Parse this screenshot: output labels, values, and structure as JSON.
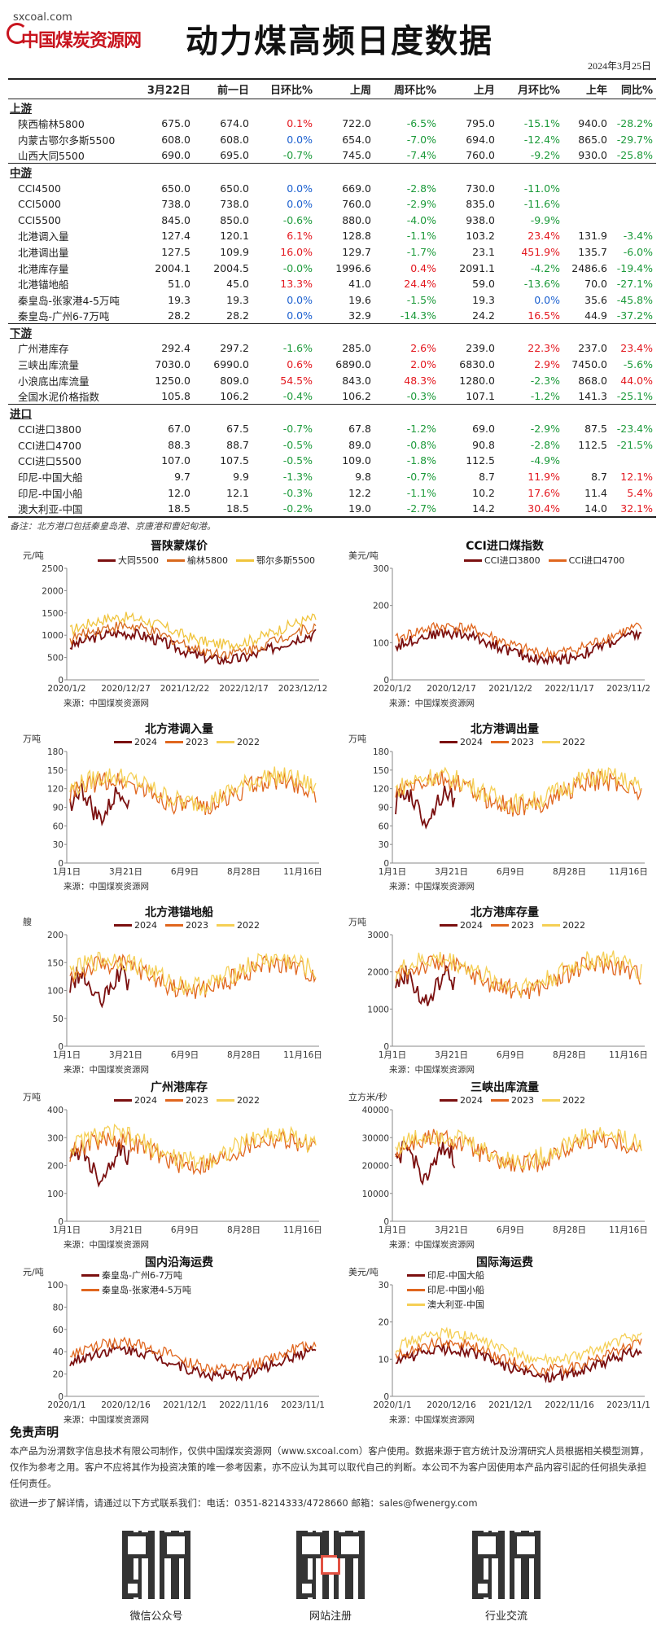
{
  "header": {
    "site": "sxcoal.com",
    "logo_name": "中国煤炭资源网",
    "title": "动力煤高频日度数据",
    "date": "2024年3月25日"
  },
  "table": {
    "columns": [
      "",
      "3月22日",
      "前一日",
      "日环比%",
      "上周",
      "周环比%",
      "上月",
      "月环比%",
      "上年",
      "同比%"
    ],
    "sections": [
      {
        "name": "上游",
        "rows": [
          [
            "陕西榆林5800",
            "675.0",
            "674.0",
            "0.1%",
            "722.0",
            "-6.5%",
            "795.0",
            "-15.1%",
            "940.0",
            "-28.2%"
          ],
          [
            "内蒙古鄂尔多斯5500",
            "608.0",
            "608.0",
            "0.0%",
            "654.0",
            "-7.0%",
            "694.0",
            "-12.4%",
            "865.0",
            "-29.7%"
          ],
          [
            "山西大同5500",
            "690.0",
            "695.0",
            "-0.7%",
            "745.0",
            "-7.4%",
            "760.0",
            "-9.2%",
            "930.0",
            "-25.8%"
          ]
        ]
      },
      {
        "name": "中游",
        "rows": [
          [
            "CCI4500",
            "650.0",
            "650.0",
            "0.0%",
            "669.0",
            "-2.8%",
            "730.0",
            "-11.0%",
            "",
            ""
          ],
          [
            "CCI5000",
            "738.0",
            "738.0",
            "0.0%",
            "760.0",
            "-2.9%",
            "835.0",
            "-11.6%",
            "",
            ""
          ],
          [
            "CCI5500",
            "845.0",
            "850.0",
            "-0.6%",
            "880.0",
            "-4.0%",
            "938.0",
            "-9.9%",
            "",
            ""
          ],
          [
            "北港调入量",
            "127.4",
            "120.1",
            "6.1%",
            "128.8",
            "-1.1%",
            "103.2",
            "23.4%",
            "131.9",
            "-3.4%"
          ],
          [
            "北港调出量",
            "127.5",
            "109.9",
            "16.0%",
            "129.7",
            "-1.7%",
            "23.1",
            "451.9%",
            "135.7",
            "-6.0%"
          ],
          [
            "北港库存量",
            "2004.1",
            "2004.5",
            "-0.0%",
            "1996.6",
            "0.4%",
            "2091.1",
            "-4.2%",
            "2486.6",
            "-19.4%"
          ],
          [
            "北港锚地船",
            "51.0",
            "45.0",
            "13.3%",
            "41.0",
            "24.4%",
            "59.0",
            "-13.6%",
            "70.0",
            "-27.1%"
          ],
          [
            "秦皇岛-张家港4-5万吨",
            "19.3",
            "19.3",
            "0.0%",
            "19.6",
            "-1.5%",
            "19.3",
            "0.0%",
            "35.6",
            "-45.8%"
          ],
          [
            "秦皇岛-广州6-7万吨",
            "28.2",
            "28.2",
            "0.0%",
            "32.9",
            "-14.3%",
            "24.2",
            "16.5%",
            "44.9",
            "-37.2%"
          ]
        ]
      },
      {
        "name": "下游",
        "rows": [
          [
            "广州港库存",
            "292.4",
            "297.2",
            "-1.6%",
            "285.0",
            "2.6%",
            "239.0",
            "22.3%",
            "237.0",
            "23.4%"
          ],
          [
            "三峡出库流量",
            "7030.0",
            "6990.0",
            "0.6%",
            "6890.0",
            "2.0%",
            "6830.0",
            "2.9%",
            "7450.0",
            "-5.6%"
          ],
          [
            "小浪底出库流量",
            "1250.0",
            "809.0",
            "54.5%",
            "843.0",
            "48.3%",
            "1280.0",
            "-2.3%",
            "868.0",
            "44.0%"
          ],
          [
            "全国水泥价格指数",
            "105.8",
            "106.2",
            "-0.4%",
            "106.2",
            "-0.3%",
            "107.1",
            "-1.2%",
            "141.3",
            "-25.1%"
          ]
        ]
      },
      {
        "name": "进口",
        "rows": [
          [
            "CCI进口3800",
            "67.0",
            "67.5",
            "-0.7%",
            "67.8",
            "-1.2%",
            "69.0",
            "-2.9%",
            "87.5",
            "-23.4%"
          ],
          [
            "CCI进口4700",
            "88.3",
            "88.7",
            "-0.5%",
            "89.0",
            "-0.8%",
            "90.8",
            "-2.8%",
            "112.5",
            "-21.5%"
          ],
          [
            "CCI进口5500",
            "107.0",
            "107.5",
            "-0.5%",
            "109.0",
            "-1.8%",
            "112.5",
            "-4.9%",
            "",
            ""
          ],
          [
            "印尼-中国大船",
            "9.7",
            "9.9",
            "-1.3%",
            "9.8",
            "-0.7%",
            "8.7",
            "11.9%",
            "8.7",
            "12.1%"
          ],
          [
            "印尼-中国小船",
            "12.0",
            "12.1",
            "-0.3%",
            "12.2",
            "-1.1%",
            "10.2",
            "17.6%",
            "11.4",
            "5.4%"
          ],
          [
            "澳大利亚-中国",
            "18.5",
            "18.5",
            "-0.2%",
            "19.0",
            "-2.7%",
            "14.2",
            "30.4%",
            "14.0",
            "32.1%"
          ]
        ]
      }
    ],
    "note": "备注：北方港口包括秦皇岛港、京唐港和曹妃甸港。"
  },
  "charts": [
    {
      "id": "c1",
      "title": "晋陕蒙煤价",
      "unit": "元/吨",
      "source": "来源：中国煤炭资源网",
      "yticks": [
        "0",
        "500",
        "1000",
        "1500",
        "2000",
        "2500"
      ],
      "ymax": 2500,
      "xticks": [
        "2020/1/2",
        "2020/12/27",
        "2021/12/22",
        "2022/12/17",
        "2023/12/12"
      ],
      "legend": [
        "大同5500",
        "榆林5800",
        "鄂尔多斯5500"
      ],
      "colors": [
        "#7b1010",
        "#d86a1e",
        "#f0c43c"
      ]
    },
    {
      "id": "c2",
      "title": "CCI进口煤指数",
      "unit": "美元/吨",
      "source": "来源：中国煤炭资源网",
      "yticks": [
        "0",
        "100",
        "200",
        "300"
      ],
      "ymax": 300,
      "xticks": [
        "2020/1/2",
        "2020/12/17",
        "2021/12/2",
        "2022/11/17",
        "2023/11/2"
      ],
      "legend": [
        "CCI进口3800",
        "CCI进口4700"
      ],
      "colors": [
        "#7b1010",
        "#e0661e"
      ]
    },
    {
      "id": "c3",
      "title": "北方港调入量",
      "unit": "万吨",
      "source": "来源：中国煤炭资源网",
      "yticks": [
        "0",
        "30",
        "60",
        "90",
        "120",
        "150",
        "180"
      ],
      "ymax": 180,
      "xticks": [
        "1月1日",
        "3月21日",
        "6月9日",
        "8月28日",
        "11月16日"
      ],
      "legend": [
        "2024",
        "2023",
        "2022"
      ],
      "colors": [
        "#7b1010",
        "#e0661e",
        "#f5cf55"
      ]
    },
    {
      "id": "c4",
      "title": "北方港调出量",
      "unit": "万吨",
      "source": "来源：中国煤炭资源网",
      "yticks": [
        "0",
        "30",
        "60",
        "90",
        "120",
        "150",
        "180"
      ],
      "ymax": 180,
      "xticks": [
        "1月1日",
        "3月21日",
        "6月9日",
        "8月28日",
        "11月16日"
      ],
      "legend": [
        "2024",
        "2023",
        "2022"
      ],
      "colors": [
        "#7b1010",
        "#e0661e",
        "#f5cf55"
      ]
    },
    {
      "id": "c5",
      "title": "北方港锚地船",
      "unit": "艘",
      "source": "来源：中国煤炭资源网",
      "yticks": [
        "0",
        "50",
        "100",
        "150",
        "200"
      ],
      "ymax": 200,
      "xticks": [
        "1月1日",
        "3月21日",
        "6月9日",
        "8月28日",
        "11月16日"
      ],
      "legend": [
        "2024",
        "2023",
        "2022"
      ],
      "colors": [
        "#7b1010",
        "#e0661e",
        "#f5cf55"
      ]
    },
    {
      "id": "c6",
      "title": "北方港库存量",
      "unit": "万吨",
      "source": "来源：中国煤炭资源网",
      "yticks": [
        "0",
        "1000",
        "2000",
        "3000"
      ],
      "ymax": 3000,
      "xticks": [
        "1月1日",
        "3月21日",
        "6月9日",
        "8月28日",
        "11月16日"
      ],
      "legend": [
        "2024",
        "2023",
        "2022"
      ],
      "colors": [
        "#7b1010",
        "#e0661e",
        "#f5cf55"
      ]
    },
    {
      "id": "c7",
      "title": "广州港库存",
      "unit": "万吨",
      "source": "来源：中国煤炭资源网",
      "yticks": [
        "0",
        "100",
        "200",
        "300",
        "400"
      ],
      "ymax": 400,
      "xticks": [
        "1月1日",
        "3月21日",
        "6月9日",
        "8月28日",
        "11月16日"
      ],
      "legend": [
        "2024",
        "2023",
        "2022"
      ],
      "colors": [
        "#7b1010",
        "#e0661e",
        "#f5cf55"
      ]
    },
    {
      "id": "c8",
      "title": "三峡出库流量",
      "unit": "立方米/秒",
      "source": "来源：中国煤炭资源网",
      "yticks": [
        "0",
        "10000",
        "20000",
        "30000",
        "40000"
      ],
      "ymax": 40000,
      "xticks": [
        "1月1日",
        "3月21日",
        "6月9日",
        "8月28日",
        "11月16日"
      ],
      "legend": [
        "2024",
        "2023",
        "2022"
      ],
      "colors": [
        "#7b1010",
        "#e0661e",
        "#f5cf55"
      ]
    },
    {
      "id": "c9",
      "title": "国内沿海运费",
      "unit": "元/吨",
      "source": "来源：中国煤炭资源网",
      "yticks": [
        "0",
        "20",
        "40",
        "60",
        "80",
        "100"
      ],
      "ymax": 100,
      "xticks": [
        "2020/1/1",
        "2020/12/16",
        "2021/12/1",
        "2022/11/16",
        "2023/11/1"
      ],
      "legend": [
        "秦皇岛-广州6-7万吨",
        "秦皇岛-张家港4-5万吨"
      ],
      "colors": [
        "#7b1010",
        "#e0661e"
      ]
    },
    {
      "id": "c10",
      "title": "国际海运费",
      "unit": "美元/吨",
      "source": "来源：中国煤炭资源网",
      "yticks": [
        "0",
        "10",
        "20",
        "30"
      ],
      "ymax": 30,
      "xticks": [
        "2020/1/1",
        "2020/12/16",
        "2021/12/1",
        "2022/11/16",
        "2023/11/1"
      ],
      "legend": [
        "印尼-中国大船",
        "印尼-中国小船",
        "澳大利亚-中国"
      ],
      "colors": [
        "#7b1010",
        "#e0661e",
        "#f5cf55"
      ]
    }
  ],
  "disclaimer": {
    "title": "免责声明",
    "text": "本产品为汾渭数字信息技术有限公司制作，仅供中国煤炭资源网（www.sxcoal.com）客户使用。数据来源于官方统计及汾渭研究人员根据相关模型测算，仅作为参考之用。客户不应将其作为投资决策的唯一参考因素，亦不应认为其可以取代自己的判断。本公司不为客户因使用本产品内容引起的任何损失承担任何责任。",
    "contact": "欲进一步了解详情，请通过以下方式联系我们：电话：0351-8214333/4728660 邮箱：sales@fwenergy.com"
  },
  "qrcodes": [
    "微信公众号",
    "网站注册",
    "行业交流"
  ]
}
